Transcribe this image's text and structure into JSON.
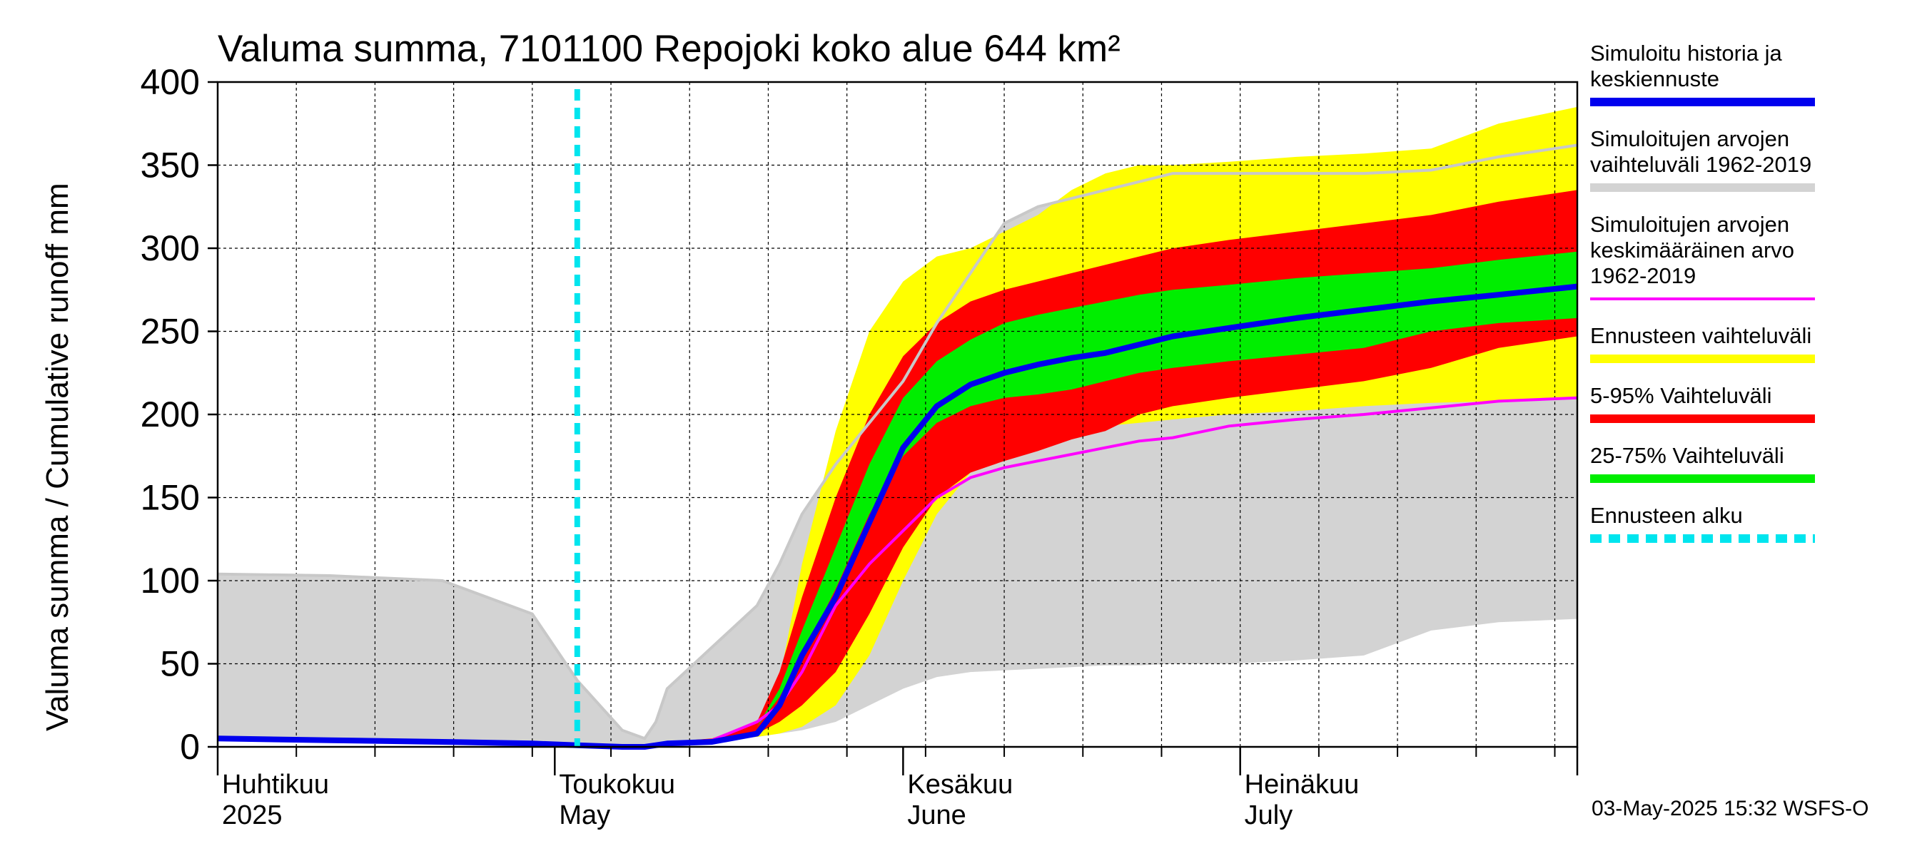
{
  "chart_data": {
    "type": "area",
    "title": "Valuma summa, 7101100 Repojoki koko alue 644 km²",
    "ylabel": "Valuma summa / Cumulative runoff    mm",
    "ylim": [
      0,
      400
    ],
    "y_ticks": [
      "0",
      "50",
      "100",
      "150",
      "200",
      "250",
      "300",
      "350",
      "400"
    ],
    "x_range": [
      "2025-04-01",
      "2025-07-31"
    ],
    "month_labels": [
      {
        "fi": "Huhtikuu",
        "en": "2025",
        "date": "2025-04-01"
      },
      {
        "fi": "Toukokuu",
        "en": "May",
        "date": "2025-05-01"
      },
      {
        "fi": "Kesäkuu",
        "en": "June",
        "date": "2025-06-01"
      },
      {
        "fi": "Heinäkuu",
        "en": "July",
        "date": "2025-07-01"
      }
    ],
    "forecast_start": "2025-05-03",
    "grid": true,
    "legend_position": "right",
    "colors": {
      "historical_range": "#d3d3d3",
      "forecast_range": "#ffff00",
      "p5_95": "#ff0000",
      "p25_75": "#00ee00",
      "median": "#0000ee",
      "mean": "#ff00ff",
      "forecast_start": "#00e5ee"
    },
    "x_days": [
      0,
      10,
      20,
      28,
      32,
      36,
      38,
      39,
      40,
      44,
      48,
      50,
      52,
      55,
      58,
      61,
      64,
      67,
      70,
      73,
      76,
      79,
      82,
      85,
      90,
      96,
      102,
      108,
      114,
      121
    ],
    "series": [
      {
        "name": "Simuloitujen arvojen vaihteluväli 1962-2019",
        "role": "hist_min",
        "values": [
          5,
          4,
          3,
          2,
          1,
          0,
          1,
          1,
          2,
          3,
          6,
          8,
          10,
          15,
          25,
          35,
          42,
          45,
          46,
          47,
          48,
          49,
          49,
          50,
          50,
          52,
          55,
          70,
          75,
          77
        ]
      },
      {
        "name": "Simuloitujen arvojen vaihteluväli 1962-2019",
        "role": "hist_max",
        "values": [
          104,
          103,
          100,
          80,
          40,
          10,
          5,
          15,
          35,
          60,
          85,
          110,
          140,
          170,
          195,
          220,
          255,
          285,
          315,
          325,
          330,
          335,
          340,
          345,
          345,
          345,
          345,
          347,
          355,
          362
        ]
      },
      {
        "name": "Ennusteen vaihteluväli",
        "role": "fc_min",
        "values": [
          null,
          null,
          null,
          null,
          null,
          0,
          1,
          2,
          3,
          4,
          6,
          8,
          12,
          25,
          55,
          100,
          140,
          165,
          180,
          185,
          190,
          193,
          195,
          197,
          200,
          202,
          205,
          207,
          208,
          210
        ]
      },
      {
        "name": "Ennusteen vaihteluväli",
        "role": "fc_max",
        "values": [
          null,
          null,
          null,
          null,
          null,
          0,
          1,
          2,
          3,
          5,
          10,
          40,
          110,
          190,
          250,
          280,
          295,
          300,
          310,
          320,
          335,
          345,
          350,
          350,
          352,
          355,
          357,
          360,
          375,
          385
        ]
      },
      {
        "name": "5-95% Vaihteluväli",
        "role": "p5",
        "values": [
          null,
          null,
          null,
          null,
          null,
          0,
          1,
          2,
          3,
          4,
          8,
          15,
          25,
          45,
          80,
          120,
          150,
          165,
          172,
          178,
          185,
          190,
          200,
          205,
          210,
          215,
          220,
          228,
          240,
          247
        ]
      },
      {
        "name": "5-95% Vaihteluväli",
        "role": "p95",
        "values": [
          null,
          null,
          null,
          null,
          null,
          0,
          1,
          2,
          3,
          5,
          15,
          45,
          90,
          150,
          200,
          235,
          255,
          268,
          275,
          280,
          285,
          290,
          295,
          300,
          305,
          310,
          315,
          320,
          328,
          335
        ]
      },
      {
        "name": "25-75% Vaihteluväli",
        "role": "p25",
        "values": [
          null,
          null,
          null,
          null,
          null,
          0,
          1,
          2,
          3,
          5,
          12,
          30,
          55,
          95,
          140,
          175,
          195,
          205,
          210,
          212,
          215,
          220,
          225,
          228,
          232,
          236,
          240,
          250,
          255,
          258
        ]
      },
      {
        "name": "25-75% Vaihteluväli",
        "role": "p75",
        "values": [
          null,
          null,
          null,
          null,
          null,
          0,
          1,
          2,
          3,
          5,
          12,
          35,
          70,
          120,
          170,
          210,
          232,
          245,
          255,
          260,
          264,
          268,
          272,
          275,
          278,
          282,
          285,
          288,
          293,
          298
        ]
      },
      {
        "name": "Simuloitu historia ja keskiennuste",
        "role": "median",
        "values": [
          5,
          4,
          3,
          2,
          1,
          0,
          0,
          1,
          2,
          3,
          8,
          25,
          55,
          90,
          135,
          180,
          205,
          218,
          225,
          230,
          234,
          237,
          242,
          247,
          252,
          258,
          263,
          268,
          272,
          277
        ]
      },
      {
        "name": "Simuloitujen arvojen keskimääräinen arvo 1962-2019",
        "role": "mean",
        "values": [
          5,
          4,
          3,
          2,
          1,
          0,
          0,
          1,
          2,
          4,
          15,
          25,
          45,
          85,
          110,
          130,
          150,
          162,
          168,
          172,
          176,
          180,
          184,
          186,
          193,
          197,
          200,
          204,
          208,
          210
        ]
      }
    ]
  },
  "legend": [
    {
      "lines": [
        "Simuloitu historia ja",
        "keskiennuste"
      ],
      "color": "#0000ee",
      "style": "solid"
    },
    {
      "lines": [
        "Simuloitujen arvojen",
        "vaihteluväli 1962-2019"
      ],
      "color": "#d3d3d3",
      "style": "solid"
    },
    {
      "lines": [
        "Simuloitujen arvojen",
        "keskimääräinen arvo",
        "   1962-2019"
      ],
      "color": "#ff00ff",
      "style": "thin"
    },
    {
      "lines": [
        "Ennusteen vaihteluväli"
      ],
      "color": "#ffff00",
      "style": "solid"
    },
    {
      "lines": [
        "5-95% Vaihteluväli"
      ],
      "color": "#ff0000",
      "style": "solid"
    },
    {
      "lines": [
        "25-75% Vaihteluväli"
      ],
      "color": "#00ee00",
      "style": "solid"
    },
    {
      "lines": [
        "Ennusteen alku"
      ],
      "color": "#00e5ee",
      "style": "dashed"
    }
  ],
  "footer": "03-May-2025 15:32 WSFS-O"
}
